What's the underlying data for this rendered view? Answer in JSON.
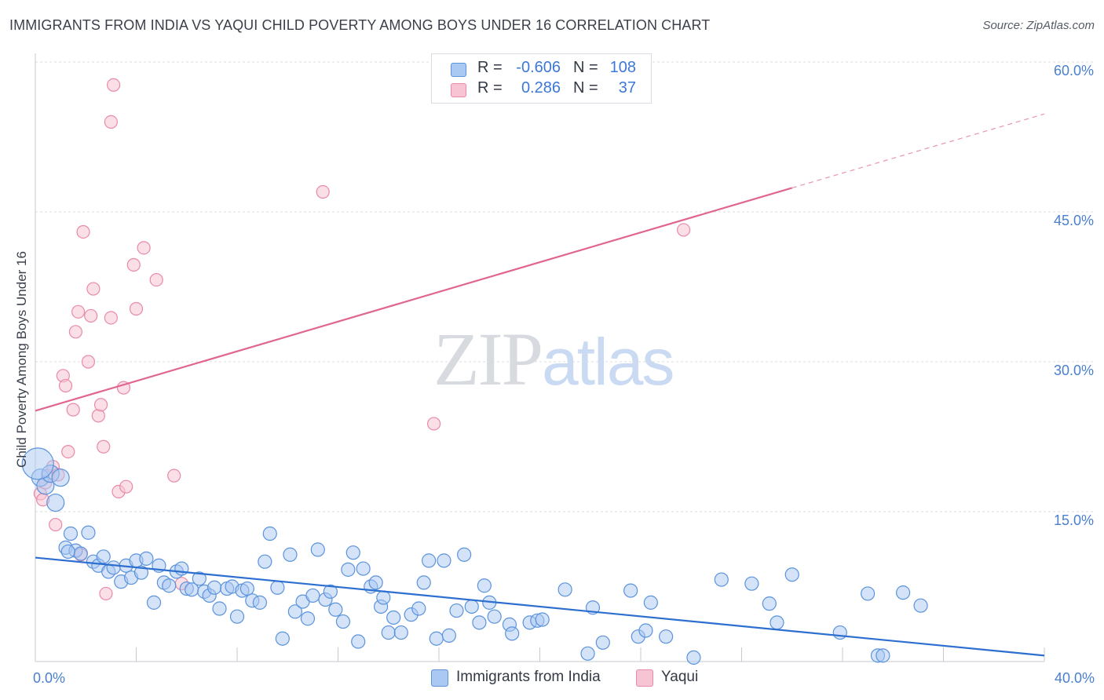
{
  "header": {
    "title": "IMMIGRANTS FROM INDIA VS YAQUI CHILD POVERTY AMONG BOYS UNDER 16 CORRELATION CHART",
    "source": "Source: ZipAtlas.com"
  },
  "watermark": {
    "zip": "ZIP",
    "atlas": "atlas"
  },
  "legend": {
    "rows": [
      {
        "r_label": "R =",
        "r_value": "-0.606",
        "n_label": "N =",
        "n_value": "108"
      },
      {
        "r_label": "R =",
        "r_value": "0.286",
        "n_label": "N =",
        "n_value": "37"
      }
    ],
    "series_labels": [
      "Immigrants from India",
      "Yaqui"
    ]
  },
  "colors": {
    "india_fill": "#a9c8f2",
    "india_stroke": "#5b93dc",
    "india_line": "#2d6fd0",
    "yaqui_fill": "#f6c4d3",
    "yaqui_stroke": "#e88aa8",
    "yaqui_line": "#e06690",
    "tick_label": "#4a7fcf",
    "grid": "#d9dce2"
  },
  "chart_data": {
    "type": "scatter",
    "title": "IMMIGRANTS FROM INDIA VS YAQUI CHILD POVERTY AMONG BOYS UNDER 16 CORRELATION CHART",
    "xlabel": "",
    "ylabel": "Child Poverty Among Boys Under 16",
    "xlim": [
      0,
      40
    ],
    "ylim": [
      0,
      60
    ],
    "x_tick_labels": [
      "0.0%",
      "40.0%"
    ],
    "y_ticks": [
      15,
      30,
      45,
      60
    ],
    "y_tick_labels": [
      "15.0%",
      "30.0%",
      "45.0%",
      "60.0%"
    ],
    "grid": true,
    "series": [
      {
        "name": "Immigrants from India",
        "r": -0.606,
        "n": 108,
        "trend": {
          "x0": 0,
          "y0": 10.4,
          "x1": 40,
          "y1": 0.6
        },
        "points": [
          [
            0.2,
            18.4
          ],
          [
            0.4,
            17.6
          ],
          [
            0.6,
            18.8
          ],
          [
            0.8,
            15.9
          ],
          [
            1.0,
            18.4
          ],
          [
            1.2,
            11.4
          ],
          [
            1.4,
            12.8
          ],
          [
            1.6,
            11.1
          ],
          [
            1.8,
            10.8
          ],
          [
            2.1,
            12.9
          ],
          [
            2.3,
            10.0
          ],
          [
            2.5,
            9.6
          ],
          [
            2.7,
            10.5
          ],
          [
            2.9,
            9.0
          ],
          [
            3.1,
            9.4
          ],
          [
            3.4,
            8.0
          ],
          [
            3.6,
            9.6
          ],
          [
            3.8,
            8.4
          ],
          [
            4.0,
            10.1
          ],
          [
            4.2,
            8.9
          ],
          [
            4.4,
            10.3
          ],
          [
            4.7,
            5.9
          ],
          [
            4.9,
            9.6
          ],
          [
            5.1,
            7.9
          ],
          [
            5.3,
            7.6
          ],
          [
            5.6,
            9.0
          ],
          [
            5.8,
            9.3
          ],
          [
            6.0,
            7.3
          ],
          [
            6.2,
            7.2
          ],
          [
            6.5,
            8.3
          ],
          [
            6.7,
            7.0
          ],
          [
            6.9,
            6.6
          ],
          [
            7.1,
            7.4
          ],
          [
            7.3,
            5.3
          ],
          [
            7.6,
            7.3
          ],
          [
            7.8,
            7.5
          ],
          [
            8.0,
            4.5
          ],
          [
            8.2,
            7.1
          ],
          [
            8.4,
            7.3
          ],
          [
            8.6,
            6.1
          ],
          [
            8.9,
            5.9
          ],
          [
            9.1,
            10.0
          ],
          [
            9.3,
            12.8
          ],
          [
            9.6,
            7.4
          ],
          [
            9.8,
            2.3
          ],
          [
            10.1,
            10.7
          ],
          [
            10.3,
            5.0
          ],
          [
            10.6,
            6.0
          ],
          [
            10.8,
            4.3
          ],
          [
            11.0,
            6.6
          ],
          [
            11.2,
            11.2
          ],
          [
            11.5,
            6.2
          ],
          [
            11.7,
            7.0
          ],
          [
            11.9,
            5.2
          ],
          [
            12.2,
            4.0
          ],
          [
            12.4,
            9.2
          ],
          [
            12.6,
            10.9
          ],
          [
            12.8,
            2.0
          ],
          [
            13.0,
            9.3
          ],
          [
            13.3,
            7.5
          ],
          [
            13.5,
            7.9
          ],
          [
            13.7,
            5.5
          ],
          [
            13.8,
            6.4
          ],
          [
            14.0,
            2.9
          ],
          [
            14.2,
            4.4
          ],
          [
            14.5,
            2.9
          ],
          [
            14.9,
            4.7
          ],
          [
            15.2,
            5.3
          ],
          [
            15.4,
            7.9
          ],
          [
            15.6,
            10.1
          ],
          [
            15.9,
            2.3
          ],
          [
            16.2,
            10.1
          ],
          [
            16.4,
            2.6
          ],
          [
            16.7,
            5.1
          ],
          [
            17.0,
            10.7
          ],
          [
            17.3,
            5.5
          ],
          [
            17.6,
            3.9
          ],
          [
            17.8,
            7.6
          ],
          [
            18.0,
            5.9
          ],
          [
            18.2,
            4.5
          ],
          [
            18.8,
            3.7
          ],
          [
            18.9,
            2.8
          ],
          [
            19.6,
            3.9
          ],
          [
            19.9,
            4.1
          ],
          [
            20.1,
            4.2
          ],
          [
            21.0,
            7.2
          ],
          [
            21.9,
            0.8
          ],
          [
            22.1,
            5.4
          ],
          [
            22.5,
            1.9
          ],
          [
            23.6,
            7.1
          ],
          [
            23.9,
            2.5
          ],
          [
            24.2,
            3.1
          ],
          [
            24.4,
            5.9
          ],
          [
            25.0,
            2.5
          ],
          [
            26.1,
            0.4
          ],
          [
            27.2,
            8.2
          ],
          [
            28.4,
            7.8
          ],
          [
            29.1,
            5.8
          ],
          [
            29.4,
            3.9
          ],
          [
            30.0,
            8.7
          ],
          [
            31.9,
            2.9
          ],
          [
            33.0,
            6.8
          ],
          [
            33.4,
            0.6
          ],
          [
            33.6,
            0.6
          ],
          [
            34.4,
            6.9
          ],
          [
            35.1,
            5.6
          ],
          [
            0.1,
            19.8
          ],
          [
            1.3,
            11.0
          ]
        ]
      },
      {
        "name": "Yaqui",
        "r": 0.286,
        "n": 37,
        "trend": {
          "x0": 0,
          "y0": 25.1,
          "x1": 30,
          "y1": 47.4,
          "dashed_to": {
            "x": 40,
            "y": 54.8
          }
        },
        "points": [
          [
            0.2,
            16.8
          ],
          [
            0.3,
            16.2
          ],
          [
            0.5,
            18.6
          ],
          [
            0.7,
            19.5
          ],
          [
            0.8,
            13.7
          ],
          [
            0.9,
            18.7
          ],
          [
            1.1,
            28.6
          ],
          [
            1.2,
            27.6
          ],
          [
            1.3,
            21.0
          ],
          [
            1.5,
            25.2
          ],
          [
            1.6,
            33.0
          ],
          [
            1.7,
            35.0
          ],
          [
            1.8,
            10.7
          ],
          [
            1.9,
            43.0
          ],
          [
            2.1,
            30.0
          ],
          [
            2.2,
            34.6
          ],
          [
            2.3,
            37.3
          ],
          [
            2.5,
            24.6
          ],
          [
            2.6,
            25.7
          ],
          [
            2.7,
            21.5
          ],
          [
            2.8,
            6.8
          ],
          [
            3.0,
            54.0
          ],
          [
            3.0,
            34.4
          ],
          [
            3.1,
            57.7
          ],
          [
            3.3,
            17.0
          ],
          [
            3.5,
            27.4
          ],
          [
            3.6,
            17.5
          ],
          [
            3.9,
            39.7
          ],
          [
            4.0,
            35.3
          ],
          [
            4.3,
            41.4
          ],
          [
            4.8,
            38.2
          ],
          [
            5.5,
            18.6
          ],
          [
            5.8,
            7.8
          ],
          [
            11.4,
            47.0
          ],
          [
            15.8,
            23.8
          ],
          [
            25.7,
            43.2
          ],
          [
            0.4,
            17.9
          ]
        ]
      }
    ]
  }
}
